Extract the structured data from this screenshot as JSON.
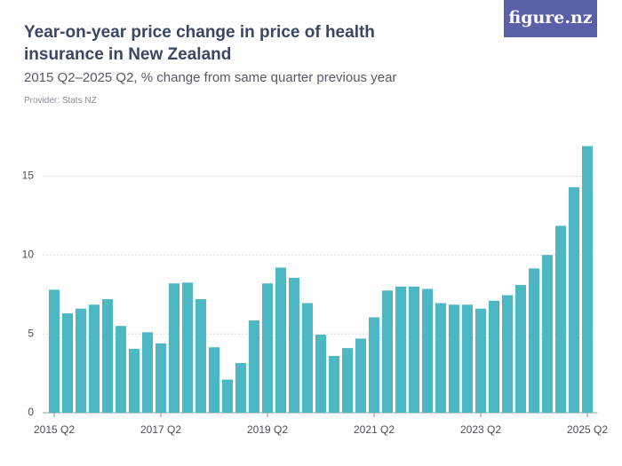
{
  "logo": "figure.nz",
  "chart_data": {
    "type": "bar",
    "title": "Year-on-year price change in price of health insurance in New Zealand",
    "subtitle": "2015 Q2–2025 Q2, % change from same quarter previous year",
    "provider": "Provider: Stats NZ",
    "categories": [
      "2015 Q2",
      null,
      null,
      null,
      null,
      null,
      null,
      null,
      "2017 Q2",
      null,
      null,
      null,
      null,
      null,
      null,
      null,
      "2019 Q2",
      null,
      null,
      null,
      null,
      null,
      null,
      null,
      "2021 Q2",
      null,
      null,
      null,
      null,
      null,
      null,
      null,
      "2023 Q2",
      null,
      null,
      null,
      null,
      null,
      null,
      null,
      "2025 Q2"
    ],
    "values": [
      7.8,
      6.3,
      6.6,
      6.85,
      7.2,
      5.5,
      4.05,
      5.1,
      4.4,
      8.2,
      8.25,
      7.2,
      4.15,
      2.1,
      3.15,
      5.85,
      8.2,
      9.2,
      8.55,
      6.95,
      4.95,
      3.6,
      4.1,
      4.7,
      6.05,
      7.75,
      8.0,
      8.0,
      7.85,
      6.95,
      6.85,
      6.85,
      6.6,
      7.1,
      7.45,
      8.1,
      9.15,
      10.0,
      11.85,
      14.3,
      16.9
    ],
    "color": "#4bb8c3",
    "ylim": [
      0,
      17.5
    ],
    "yticks": [
      0,
      5,
      10,
      15
    ],
    "grid": true
  }
}
